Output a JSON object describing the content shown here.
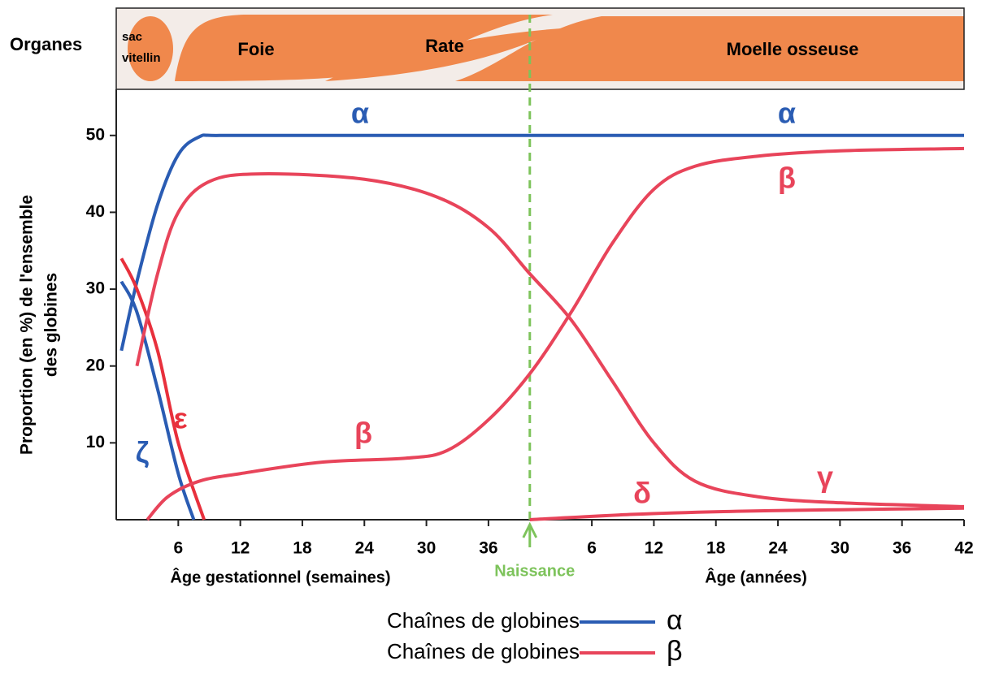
{
  "chart_data": {
    "type": "line",
    "organs": {
      "title": "Organes",
      "labels": [
        [
          "sac",
          "vitellin"
        ],
        [
          "Foie"
        ],
        [
          "Rate"
        ],
        [
          "Moelle osseuse"
        ]
      ]
    },
    "ylabel": [
      "Proportion (en %) de l'ensemble",
      "des  globines"
    ],
    "xlabels": [
      "Âge gestationnel (semaines)",
      "Âge (années)"
    ],
    "birth": {
      "x": 40,
      "label": "Naissance",
      "color": "#7dc35b"
    },
    "xlim": [
      0,
      82
    ],
    "ylim": [
      0,
      56
    ],
    "xticks": [
      6,
      12,
      18,
      24,
      30,
      36,
      {
        "value": 46,
        "label": "6"
      },
      {
        "value": 52,
        "label": "12"
      },
      {
        "value": 58,
        "label": "18"
      },
      {
        "value": 64,
        "label": "24"
      },
      {
        "value": 70,
        "label": "30"
      },
      {
        "value": 76,
        "label": "36"
      },
      {
        "value": 82,
        "label": "42"
      }
    ],
    "yticks": [
      10,
      20,
      30,
      40,
      50
    ],
    "series": [
      {
        "name": "α",
        "color": "#2a5cb3",
        "x": [
          0.5,
          2,
          4,
          6,
          8,
          10,
          20,
          40,
          60,
          82
        ],
        "values": [
          22,
          31,
          41,
          47.5,
          49.8,
          50,
          50,
          50,
          50,
          50
        ]
      },
      {
        "name": "ζ",
        "color": "#2a5cb3",
        "x": [
          0.5,
          2,
          4,
          6,
          7.5
        ],
        "values": [
          31,
          27,
          17,
          6,
          0
        ]
      },
      {
        "name": "ε",
        "color": "#e8303c",
        "x": [
          0.5,
          2,
          4,
          6,
          8.5
        ],
        "values": [
          34,
          30,
          22,
          10,
          0
        ]
      },
      {
        "name": "γ",
        "color": "#e8445a",
        "x": [
          2,
          4,
          6,
          9,
          14,
          24,
          31,
          36,
          40,
          44,
          48,
          52,
          56,
          62,
          70,
          82
        ],
        "values": [
          20,
          32,
          40,
          44,
          45,
          44.3,
          42,
          38,
          32,
          26,
          18,
          10,
          5,
          3,
          2.2,
          1.7
        ]
      },
      {
        "name": "β",
        "color": "#e8445a",
        "x": [
          3,
          5,
          8,
          12,
          20,
          28,
          32,
          36,
          40,
          44,
          48,
          52,
          56,
          62,
          70,
          82
        ],
        "values": [
          0,
          3,
          5,
          6,
          7.5,
          8,
          9,
          13,
          19,
          27,
          36,
          43,
          46,
          47.3,
          48,
          48.3
        ]
      },
      {
        "name": "δ",
        "color": "#e8445a",
        "x": [
          40,
          50,
          60,
          70,
          82
        ],
        "values": [
          0,
          0.7,
          1.1,
          1.3,
          1.5
        ]
      }
    ],
    "legend": [
      {
        "label": "Chaînes de globines",
        "symbol": "α",
        "color": "#2a5cb3"
      },
      {
        "label": "Chaînes de globines",
        "symbol": "β",
        "color": "#e8445a"
      }
    ]
  }
}
